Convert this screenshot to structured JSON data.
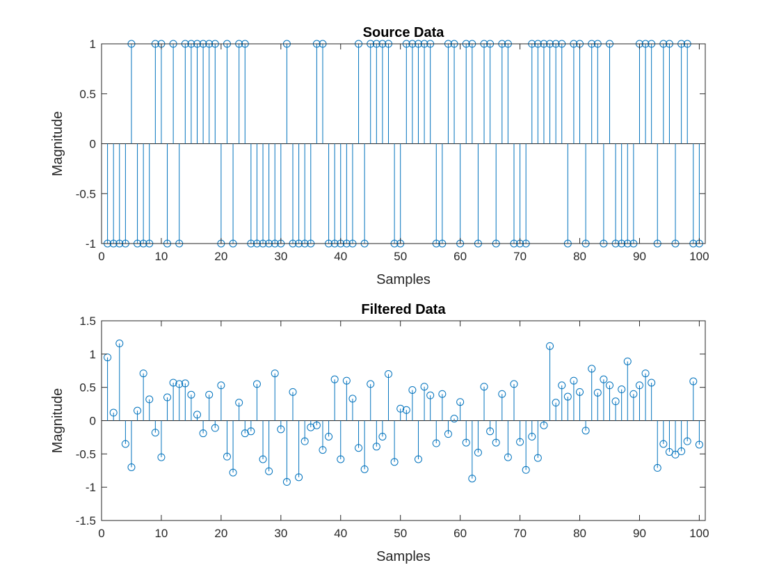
{
  "figure": {
    "color": "#0072BD",
    "axis_color": "#262626"
  },
  "chart_data": [
    {
      "type": "stem",
      "title": "Source Data",
      "xlabel": "Samples",
      "ylabel": "Magnitude",
      "xlim": [
        0,
        101
      ],
      "ylim": [
        -1,
        1
      ],
      "xticks": [
        0,
        10,
        20,
        30,
        40,
        50,
        60,
        70,
        80,
        90,
        100
      ],
      "xtick_labels": [
        "0",
        "10",
        "20",
        "30",
        "40",
        "50",
        "60",
        "70",
        "80",
        "90",
        "100"
      ],
      "yticks": [
        -1,
        -0.5,
        0,
        0.5,
        1
      ],
      "ytick_labels": [
        "-1",
        "-0.5",
        "0",
        "0.5",
        "1"
      ],
      "x": [
        1,
        2,
        3,
        4,
        5,
        6,
        7,
        8,
        9,
        10,
        11,
        12,
        13,
        14,
        15,
        16,
        17,
        18,
        19,
        20,
        21,
        22,
        23,
        24,
        25,
        26,
        27,
        28,
        29,
        30,
        31,
        32,
        33,
        34,
        35,
        36,
        37,
        38,
        39,
        40,
        41,
        42,
        43,
        44,
        45,
        46,
        47,
        48,
        49,
        50,
        51,
        52,
        53,
        54,
        55,
        56,
        57,
        58,
        59,
        60,
        61,
        62,
        63,
        64,
        65,
        66,
        67,
        68,
        69,
        70,
        71,
        72,
        73,
        74,
        75,
        76,
        77,
        78,
        79,
        80,
        81,
        82,
        83,
        84,
        85,
        86,
        87,
        88,
        89,
        90,
        91,
        92,
        93,
        94,
        95,
        96,
        97,
        98,
        99,
        100
      ],
      "values": [
        -1,
        -1,
        -1,
        -1,
        1,
        -1,
        -1,
        -1,
        1,
        1,
        -1,
        1,
        -1,
        1,
        1,
        1,
        1,
        1,
        1,
        -1,
        1,
        -1,
        1,
        1,
        -1,
        -1,
        -1,
        -1,
        -1,
        -1,
        1,
        -1,
        -1,
        -1,
        -1,
        1,
        1,
        -1,
        -1,
        -1,
        -1,
        -1,
        1,
        -1,
        1,
        1,
        1,
        1,
        -1,
        -1,
        1,
        1,
        1,
        1,
        1,
        -1,
        -1,
        1,
        1,
        -1,
        1,
        1,
        -1,
        1,
        1,
        -1,
        1,
        1,
        -1,
        -1,
        -1,
        1,
        1,
        1,
        1,
        1,
        1,
        -1,
        1,
        1,
        -1,
        1,
        1,
        -1,
        1,
        -1,
        -1,
        -1,
        -1,
        1,
        1,
        1,
        -1,
        1,
        1,
        -1,
        1,
        1,
        -1,
        -1
      ]
    },
    {
      "type": "stem",
      "title": "Filtered Data",
      "xlabel": "Samples",
      "ylabel": "Magnitude",
      "xlim": [
        0,
        101
      ],
      "ylim": [
        -1.5,
        1.5
      ],
      "xticks": [
        0,
        10,
        20,
        30,
        40,
        50,
        60,
        70,
        80,
        90,
        100
      ],
      "xtick_labels": [
        "0",
        "10",
        "20",
        "30",
        "40",
        "50",
        "60",
        "70",
        "80",
        "90",
        "100"
      ],
      "yticks": [
        -1.5,
        -1,
        -0.5,
        0,
        0.5,
        1,
        1.5
      ],
      "ytick_labels": [
        "-1.5",
        "-1",
        "-0.5",
        "0",
        "0.5",
        "1",
        "1.5"
      ],
      "x": [
        1,
        2,
        3,
        4,
        5,
        6,
        7,
        8,
        9,
        10,
        11,
        12,
        13,
        14,
        15,
        16,
        17,
        18,
        19,
        20,
        21,
        22,
        23,
        24,
        25,
        26,
        27,
        28,
        29,
        30,
        31,
        32,
        33,
        34,
        35,
        36,
        37,
        38,
        39,
        40,
        41,
        42,
        43,
        44,
        45,
        46,
        47,
        48,
        49,
        50,
        51,
        52,
        53,
        54,
        55,
        56,
        57,
        58,
        59,
        60,
        61,
        62,
        63,
        64,
        65,
        66,
        67,
        68,
        69,
        70,
        71,
        72,
        73,
        74,
        75,
        76,
        77,
        78,
        79,
        80,
        81,
        82,
        83,
        84,
        85,
        86,
        87,
        88,
        89,
        90,
        91,
        92,
        93,
        94,
        95,
        96,
        97,
        98,
        99,
        100
      ],
      "values": [
        0.95,
        0.12,
        1.16,
        -0.35,
        -0.7,
        0.15,
        0.71,
        0.32,
        -0.18,
        -0.55,
        0.35,
        0.57,
        0.55,
        0.56,
        0.39,
        0.09,
        -0.19,
        0.39,
        -0.11,
        0.53,
        -0.54,
        -0.78,
        0.27,
        -0.19,
        -0.16,
        0.55,
        -0.58,
        -0.76,
        0.71,
        -0.13,
        -0.92,
        0.43,
        -0.85,
        -0.31,
        -0.1,
        -0.07,
        -0.44,
        -0.24,
        0.62,
        -0.58,
        0.6,
        0.33,
        -0.41,
        -0.73,
        0.55,
        -0.39,
        -0.24,
        0.7,
        -0.62,
        0.18,
        0.16,
        0.46,
        -0.58,
        0.51,
        0.38,
        -0.34,
        0.4,
        -0.2,
        0.03,
        0.28,
        -0.33,
        -0.87,
        -0.48,
        0.51,
        -0.16,
        -0.33,
        0.4,
        -0.55,
        0.55,
        -0.32,
        -0.74,
        -0.24,
        -0.56,
        -0.07,
        1.12,
        0.27,
        0.53,
        0.36,
        0.6,
        0.43,
        -0.15,
        0.78,
        0.42,
        0.62,
        0.53,
        0.29,
        0.47,
        0.89,
        0.4,
        0.53,
        0.71,
        0.57,
        -0.71,
        -0.35,
        -0.47,
        -0.51,
        -0.46,
        -0.31,
        0.59,
        -0.36
      ]
    }
  ]
}
